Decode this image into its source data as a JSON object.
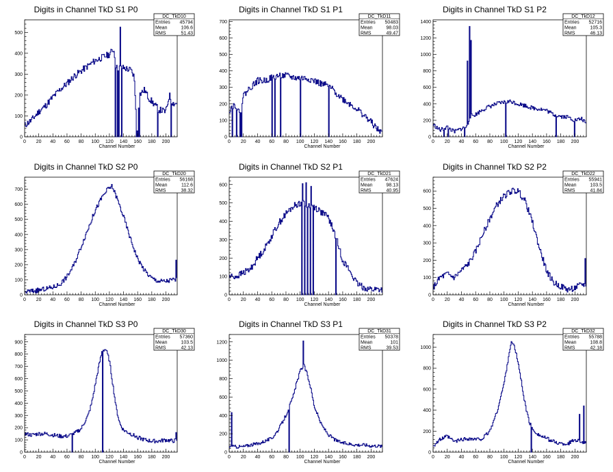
{
  "chart_data": [
    {
      "type": "histogram",
      "title": "Digits in Channel TkD S1 P0",
      "xlabel": "Channel Number",
      "xlim": [
        0,
        216
      ],
      "ylim": [
        0,
        560
      ],
      "xticks": [
        0,
        20,
        40,
        60,
        80,
        100,
        120,
        140,
        160,
        180,
        200
      ],
      "yticks": [
        0,
        100,
        200,
        300,
        400,
        500
      ],
      "stats": {
        "name": "DC_TkD10",
        "entries": "45794",
        "mean": "106.6",
        "rms": "51.43"
      },
      "anchors": [
        [
          0,
          55
        ],
        [
          10,
          80
        ],
        [
          20,
          120
        ],
        [
          30,
          150
        ],
        [
          40,
          190
        ],
        [
          50,
          225
        ],
        [
          60,
          255
        ],
        [
          70,
          290
        ],
        [
          80,
          315
        ],
        [
          90,
          340
        ],
        [
          100,
          365
        ],
        [
          110,
          380
        ],
        [
          120,
          395
        ],
        [
          126,
          420
        ],
        [
          130,
          330
        ],
        [
          140,
          330
        ],
        [
          150,
          320
        ],
        [
          155,
          290
        ],
        [
          160,
          0
        ],
        [
          162,
          200
        ],
        [
          170,
          225
        ],
        [
          175,
          190
        ],
        [
          180,
          170
        ],
        [
          190,
          130
        ],
        [
          200,
          120
        ],
        [
          205,
          200
        ],
        [
          210,
          160
        ],
        [
          216,
          160
        ]
      ],
      "spikes": [
        [
          135,
          525
        ]
      ],
      "drops": [
        128,
        131,
        133,
        137,
        158,
        160,
        162,
        188,
        207
      ],
      "noise": 16,
      "seed": 11
    },
    {
      "type": "histogram",
      "title": "Digits in Channel TkD S1 P1",
      "xlabel": "Channel Number",
      "xlim": [
        0,
        216
      ],
      "ylim": [
        0,
        710
      ],
      "xticks": [
        0,
        20,
        40,
        60,
        80,
        100,
        120,
        140,
        160,
        180,
        200
      ],
      "yticks": [
        0,
        100,
        200,
        300,
        400,
        500,
        600,
        700
      ],
      "stats": {
        "name": "DC_TkD11",
        "entries": "50483",
        "mean": "98.03",
        "rms": "49.47"
      },
      "anchors": [
        [
          0,
          160
        ],
        [
          5,
          190
        ],
        [
          10,
          190
        ],
        [
          15,
          130
        ],
        [
          20,
          250
        ],
        [
          30,
          300
        ],
        [
          40,
          340
        ],
        [
          50,
          340
        ],
        [
          60,
          360
        ],
        [
          70,
          370
        ],
        [
          80,
          370
        ],
        [
          90,
          360
        ],
        [
          100,
          355
        ],
        [
          110,
          355
        ],
        [
          120,
          340
        ],
        [
          130,
          320
        ],
        [
          140,
          310
        ],
        [
          150,
          270
        ],
        [
          160,
          230
        ],
        [
          170,
          200
        ],
        [
          180,
          170
        ],
        [
          190,
          130
        ],
        [
          200,
          90
        ],
        [
          210,
          40
        ],
        [
          216,
          30
        ]
      ],
      "spikes": [
        [
          140,
          670
        ]
      ],
      "drops": [
        4,
        10,
        15,
        17,
        60,
        64,
        72,
        100,
        140
      ],
      "noise": 20,
      "seed": 22
    },
    {
      "type": "histogram",
      "title": "Digits in Channel TkD S1 P2",
      "xlabel": "Channel Number",
      "xlim": [
        0,
        216
      ],
      "ylim": [
        0,
        1420
      ],
      "xticks": [
        0,
        20,
        40,
        60,
        80,
        100,
        120,
        140,
        160,
        180,
        200
      ],
      "yticks": [
        0,
        200,
        400,
        600,
        800,
        1000,
        1200,
        1400
      ],
      "stats": {
        "name": "DC_TkD12",
        "entries": "52716",
        "mean": "105.3",
        "rms": "46.13"
      },
      "anchors": [
        [
          0,
          150
        ],
        [
          10,
          80
        ],
        [
          20,
          120
        ],
        [
          30,
          60
        ],
        [
          40,
          100
        ],
        [
          48,
          120
        ],
        [
          52,
          250
        ],
        [
          60,
          270
        ],
        [
          70,
          330
        ],
        [
          80,
          370
        ],
        [
          90,
          400
        ],
        [
          100,
          420
        ],
        [
          110,
          430
        ],
        [
          120,
          400
        ],
        [
          130,
          380
        ],
        [
          140,
          350
        ],
        [
          150,
          340
        ],
        [
          160,
          320
        ],
        [
          170,
          270
        ],
        [
          180,
          250
        ],
        [
          190,
          240
        ],
        [
          200,
          200
        ],
        [
          210,
          220
        ],
        [
          216,
          150
        ]
      ],
      "spikes": [
        [
          48,
          920
        ],
        [
          51,
          1340
        ],
        [
          53,
          1170
        ]
      ],
      "drops": [
        15,
        21,
        44,
        102,
        173,
        199
      ],
      "noise": 25,
      "seed": 33
    },
    {
      "type": "histogram",
      "title": "Digits in Channel TkD S2 P0",
      "xlabel": "Channel Number",
      "xlim": [
        0,
        216
      ],
      "ylim": [
        0,
        780
      ],
      "xticks": [
        0,
        20,
        40,
        60,
        80,
        100,
        120,
        140,
        160,
        180,
        200
      ],
      "yticks": [
        0,
        100,
        200,
        300,
        400,
        500,
        600,
        700
      ],
      "stats": {
        "name": "DC_TkD20",
        "entries": "56168",
        "mean": "112.6",
        "rms": "38.32"
      },
      "anchors": [
        [
          0,
          20
        ],
        [
          20,
          30
        ],
        [
          40,
          50
        ],
        [
          50,
          70
        ],
        [
          60,
          120
        ],
        [
          70,
          200
        ],
        [
          80,
          320
        ],
        [
          90,
          440
        ],
        [
          100,
          560
        ],
        [
          110,
          650
        ],
        [
          118,
          700
        ],
        [
          124,
          720
        ],
        [
          130,
          650
        ],
        [
          140,
          520
        ],
        [
          150,
          370
        ],
        [
          160,
          240
        ],
        [
          170,
          160
        ],
        [
          180,
          110
        ],
        [
          190,
          90
        ],
        [
          200,
          90
        ],
        [
          210,
          100
        ],
        [
          216,
          100
        ]
      ],
      "spikes": [
        [
          214,
          230
        ]
      ],
      "drops": [],
      "noise": 16,
      "seed": 44
    },
    {
      "type": "histogram",
      "title": "Digits in Channel TkD S2 P1",
      "xlabel": "Channel Number",
      "xlim": [
        0,
        216
      ],
      "ylim": [
        0,
        640
      ],
      "xticks": [
        0,
        20,
        40,
        60,
        80,
        100,
        120,
        140,
        160,
        180,
        200
      ],
      "yticks": [
        0,
        100,
        200,
        300,
        400,
        500,
        600
      ],
      "stats": {
        "name": "DC_TkD21",
        "entries": "47624",
        "mean": "98.13",
        "rms": "40.95"
      },
      "anchors": [
        [
          0,
          100
        ],
        [
          10,
          100
        ],
        [
          20,
          120
        ],
        [
          30,
          140
        ],
        [
          40,
          200
        ],
        [
          50,
          250
        ],
        [
          60,
          320
        ],
        [
          70,
          390
        ],
        [
          80,
          440
        ],
        [
          90,
          480
        ],
        [
          100,
          500
        ],
        [
          110,
          490
        ],
        [
          120,
          480
        ],
        [
          130,
          450
        ],
        [
          140,
          420
        ],
        [
          150,
          320
        ],
        [
          160,
          190
        ],
        [
          170,
          130
        ],
        [
          180,
          60
        ],
        [
          190,
          40
        ],
        [
          200,
          30
        ],
        [
          210,
          30
        ],
        [
          216,
          30
        ]
      ],
      "spikes": [
        [
          103,
          605
        ],
        [
          108,
          610
        ],
        [
          115,
          590
        ]
      ],
      "drops": [
        102,
        106,
        110,
        114,
        118,
        150
      ],
      "noise": 18,
      "seed": 55
    },
    {
      "type": "histogram",
      "title": "Digits in Channel TkD S2 P2",
      "xlabel": "Channel Number",
      "xlim": [
        0,
        216
      ],
      "ylim": [
        0,
        680
      ],
      "xticks": [
        0,
        20,
        40,
        60,
        80,
        100,
        120,
        140,
        160,
        180,
        200
      ],
      "yticks": [
        0,
        100,
        200,
        300,
        400,
        500,
        600
      ],
      "stats": {
        "name": "DC_TkD22",
        "entries": "55941",
        "mean": "103.5",
        "rms": "41.84"
      },
      "anchors": [
        [
          0,
          40
        ],
        [
          10,
          100
        ],
        [
          20,
          120
        ],
        [
          30,
          100
        ],
        [
          40,
          140
        ],
        [
          50,
          180
        ],
        [
          60,
          250
        ],
        [
          70,
          350
        ],
        [
          80,
          440
        ],
        [
          90,
          520
        ],
        [
          100,
          570
        ],
        [
          110,
          600
        ],
        [
          120,
          600
        ],
        [
          130,
          540
        ],
        [
          140,
          420
        ],
        [
          150,
          270
        ],
        [
          160,
          140
        ],
        [
          170,
          70
        ],
        [
          180,
          50
        ],
        [
          190,
          30
        ],
        [
          200,
          40
        ],
        [
          210,
          60
        ],
        [
          216,
          60
        ]
      ],
      "spikes": [
        [
          214,
          210
        ]
      ],
      "drops": [],
      "noise": 18,
      "seed": 66
    },
    {
      "type": "histogram",
      "title": "Digits in Channel TkD S3 P0",
      "xlabel": "Channel Number",
      "xlim": [
        0,
        216
      ],
      "ylim": [
        0,
        960
      ],
      "xticks": [
        0,
        20,
        40,
        60,
        80,
        100,
        120,
        140,
        160,
        180,
        200
      ],
      "yticks": [
        0,
        100,
        200,
        300,
        400,
        500,
        600,
        700,
        800,
        900
      ],
      "stats": {
        "name": "DC_TkD30",
        "entries": "57360",
        "mean": "103.5",
        "rms": "42.13"
      },
      "anchors": [
        [
          0,
          150
        ],
        [
          10,
          140
        ],
        [
          20,
          150
        ],
        [
          30,
          150
        ],
        [
          40,
          140
        ],
        [
          50,
          130
        ],
        [
          60,
          130
        ],
        [
          70,
          150
        ],
        [
          80,
          190
        ],
        [
          90,
          300
        ],
        [
          95,
          400
        ],
        [
          100,
          550
        ],
        [
          105,
          700
        ],
        [
          110,
          830
        ],
        [
          115,
          840
        ],
        [
          120,
          750
        ],
        [
          125,
          550
        ],
        [
          130,
          350
        ],
        [
          135,
          230
        ],
        [
          140,
          180
        ],
        [
          150,
          150
        ],
        [
          160,
          120
        ],
        [
          170,
          100
        ],
        [
          180,
          90
        ],
        [
          190,
          90
        ],
        [
          200,
          100
        ],
        [
          210,
          90
        ],
        [
          216,
          100
        ]
      ],
      "spikes": [
        [
          110,
          925
        ],
        [
          214,
          160
        ]
      ],
      "drops": [
        67,
        110
      ],
      "noise": 16,
      "seed": 77
    },
    {
      "type": "histogram",
      "title": "Digits in Channel TkD S3 P1",
      "xlabel": "Channel Number",
      "xlim": [
        0,
        216
      ],
      "ylim": [
        0,
        1280
      ],
      "xticks": [
        0,
        20,
        40,
        60,
        80,
        100,
        120,
        140,
        160,
        180,
        200
      ],
      "yticks": [
        0,
        200,
        400,
        600,
        800,
        1000,
        1200
      ],
      "stats": {
        "name": "DC_TkD31",
        "entries": "50378",
        "mean": "101",
        "rms": "39.53"
      },
      "anchors": [
        [
          0,
          60
        ],
        [
          10,
          60
        ],
        [
          20,
          60
        ],
        [
          30,
          80
        ],
        [
          40,
          90
        ],
        [
          50,
          120
        ],
        [
          60,
          150
        ],
        [
          70,
          250
        ],
        [
          80,
          400
        ],
        [
          90,
          600
        ],
        [
          95,
          750
        ],
        [
          100,
          880
        ],
        [
          105,
          950
        ],
        [
          110,
          850
        ],
        [
          115,
          700
        ],
        [
          120,
          500
        ],
        [
          130,
          300
        ],
        [
          140,
          190
        ],
        [
          150,
          130
        ],
        [
          160,
          100
        ],
        [
          170,
          90
        ],
        [
          180,
          80
        ],
        [
          190,
          80
        ],
        [
          200,
          70
        ],
        [
          210,
          70
        ],
        [
          216,
          60
        ]
      ],
      "spikes": [
        [
          3,
          430
        ],
        [
          104,
          1210
        ]
      ],
      "drops": [
        84
      ],
      "noise": 18,
      "seed": 88
    },
    {
      "type": "histogram",
      "title": "Digits in Channel TkD S3 P2",
      "xlabel": "Channel Number",
      "xlim": [
        0,
        216
      ],
      "ylim": [
        0,
        1120
      ],
      "xticks": [
        0,
        20,
        40,
        60,
        80,
        100,
        120,
        140,
        160,
        180,
        200
      ],
      "yticks": [
        0,
        200,
        400,
        600,
        800,
        1000
      ],
      "stats": {
        "name": "DC_TkD32",
        "entries": "55788",
        "mean": "108.8",
        "rms": "42.18"
      },
      "anchors": [
        [
          0,
          60
        ],
        [
          10,
          120
        ],
        [
          20,
          150
        ],
        [
          30,
          100
        ],
        [
          40,
          120
        ],
        [
          50,
          130
        ],
        [
          60,
          120
        ],
        [
          70,
          130
        ],
        [
          80,
          200
        ],
        [
          90,
          380
        ],
        [
          100,
          650
        ],
        [
          105,
          850
        ],
        [
          110,
          1050
        ],
        [
          115,
          1000
        ],
        [
          120,
          850
        ],
        [
          125,
          650
        ],
        [
          130,
          450
        ],
        [
          135,
          300
        ],
        [
          140,
          220
        ],
        [
          150,
          160
        ],
        [
          160,
          130
        ],
        [
          170,
          100
        ],
        [
          180,
          80
        ],
        [
          190,
          80
        ],
        [
          200,
          120
        ],
        [
          210,
          100
        ],
        [
          216,
          80
        ]
      ],
      "spikes": [
        [
          212,
          440
        ],
        [
          206,
          360
        ]
      ],
      "drops": [
        138
      ],
      "noise": 18,
      "seed": 99
    }
  ],
  "stats_labels": {
    "entries": "Entries",
    "mean": "Mean",
    "rms": "RMS"
  }
}
